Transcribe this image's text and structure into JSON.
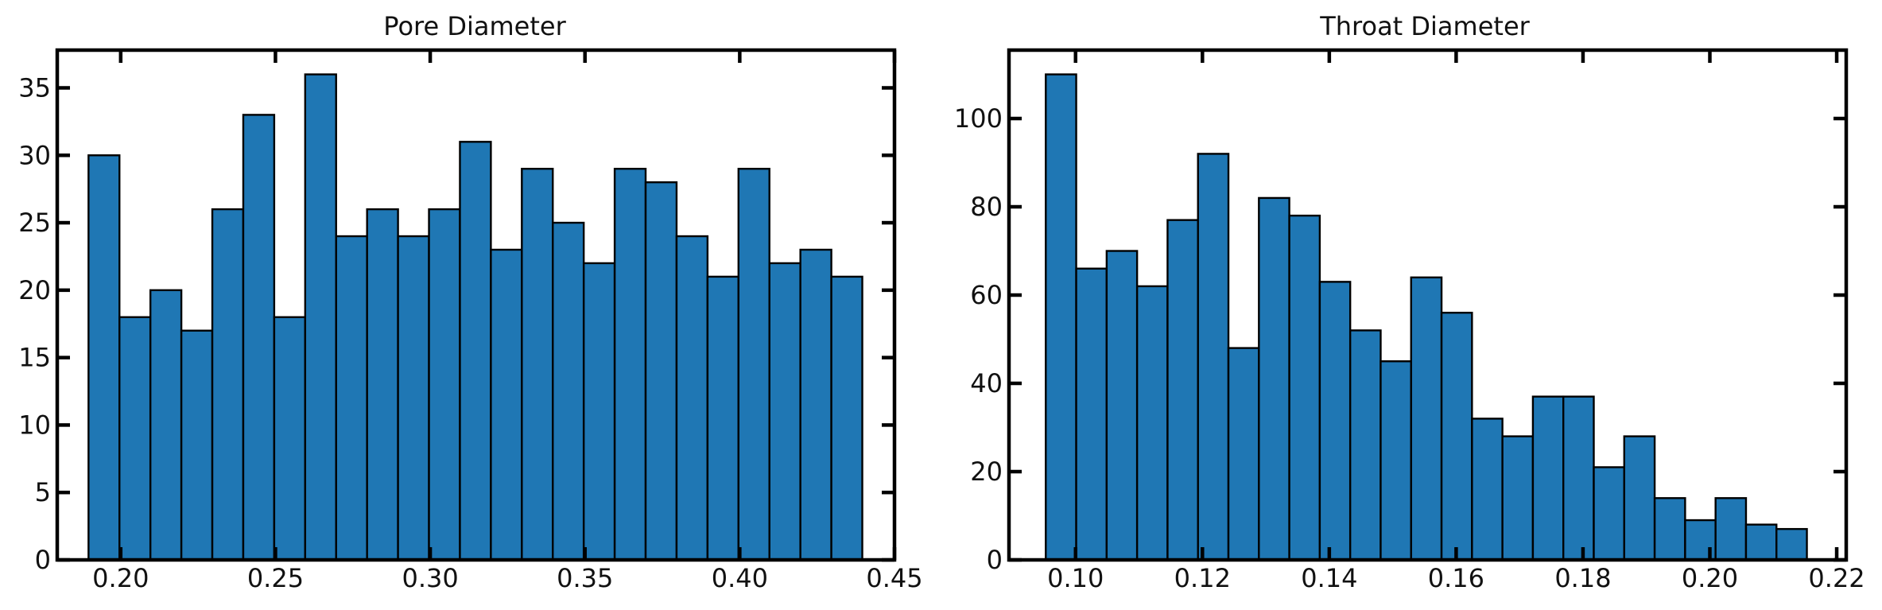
{
  "chart_data": [
    {
      "type": "bar",
      "title": "Pore Diameter",
      "xlabel": "",
      "ylabel": "",
      "xlim": [
        0.1795,
        0.45
      ],
      "ylim": [
        0,
        37.8
      ],
      "x_ticks": [
        0.2,
        0.25,
        0.3,
        0.35,
        0.4,
        0.45
      ],
      "x_tick_labels": [
        "0.20",
        "0.25",
        "0.30",
        "0.35",
        "0.40",
        "0.45"
      ],
      "y_ticks": [
        0,
        5,
        10,
        15,
        20,
        25,
        30,
        35
      ],
      "y_tick_labels": [
        "0",
        "5",
        "10",
        "15",
        "20",
        "25",
        "30",
        "35"
      ],
      "bin_edges": [
        0.1896,
        0.1996,
        0.2096,
        0.2196,
        0.2296,
        0.2396,
        0.2496,
        0.2596,
        0.2696,
        0.2796,
        0.2896,
        0.2996,
        0.3096,
        0.3196,
        0.3296,
        0.3396,
        0.3496,
        0.3596,
        0.3696,
        0.3796,
        0.3896,
        0.3996,
        0.4096,
        0.4196,
        0.4296,
        0.4396
      ],
      "values": [
        30,
        18,
        20,
        17,
        26,
        33,
        18,
        36,
        24,
        26,
        24,
        26,
        31,
        23,
        29,
        25,
        22,
        29,
        28,
        24,
        21,
        29,
        22,
        23,
        21
      ],
      "bar_color": "#1f77b4",
      "edge_color": "#000000",
      "grid": false
    },
    {
      "type": "bar",
      "title": "Throat Diameter",
      "xlabel": "",
      "ylabel": "",
      "xlim": [
        0.0895,
        0.2215
      ],
      "ylim": [
        0,
        115.5
      ],
      "x_ticks": [
        0.1,
        0.12,
        0.14,
        0.16,
        0.18,
        0.2,
        0.22
      ],
      "x_tick_labels": [
        "0.10",
        "0.12",
        "0.14",
        "0.16",
        "0.18",
        "0.20",
        "0.22"
      ],
      "y_ticks": [
        0,
        20,
        40,
        60,
        80,
        100
      ],
      "y_tick_labels": [
        "0",
        "20",
        "40",
        "60",
        "80",
        "100"
      ],
      "bin_edges": [
        0.0953,
        0.1001,
        0.1049,
        0.1097,
        0.1145,
        0.1193,
        0.1241,
        0.1289,
        0.1337,
        0.1385,
        0.1433,
        0.1481,
        0.1529,
        0.1577,
        0.1625,
        0.1673,
        0.1721,
        0.1769,
        0.1817,
        0.1865,
        0.1913,
        0.1961,
        0.2009,
        0.2057,
        0.2105,
        0.2153
      ],
      "values": [
        110,
        66,
        70,
        62,
        77,
        92,
        48,
        82,
        78,
        63,
        52,
        45,
        64,
        56,
        32,
        28,
        37,
        37,
        21,
        28,
        14,
        9,
        14,
        8,
        7
      ],
      "bar_color": "#1f77b4",
      "edge_color": "#000000",
      "grid": false
    }
  ]
}
